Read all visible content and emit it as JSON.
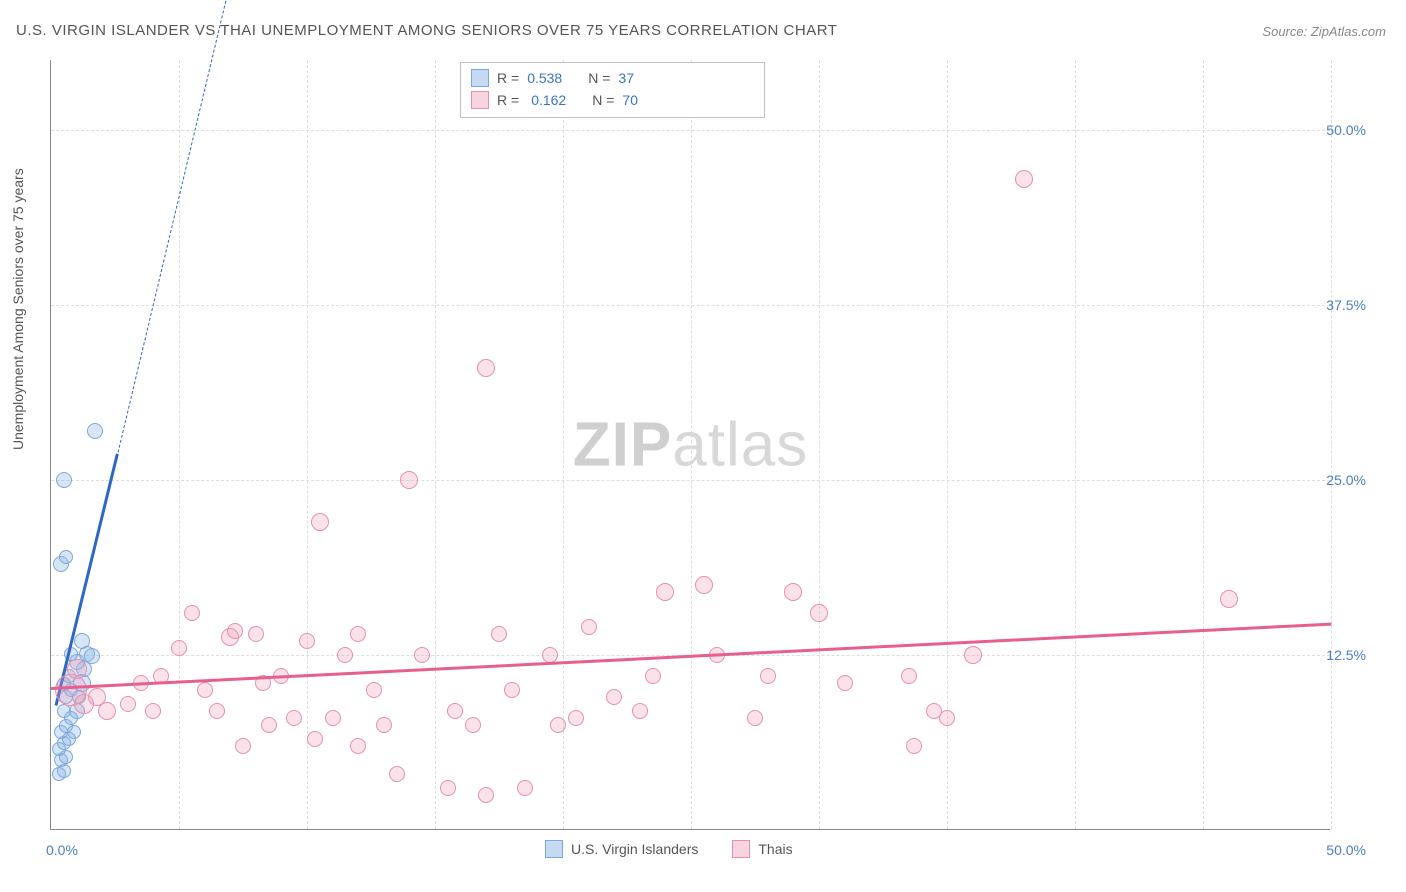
{
  "title": "U.S. VIRGIN ISLANDER VS THAI UNEMPLOYMENT AMONG SENIORS OVER 75 YEARS CORRELATION CHART",
  "source_label": "Source:",
  "source_value": "ZipAtlas.com",
  "watermark_a": "ZIP",
  "watermark_b": "atlas",
  "y_axis": {
    "label": "Unemployment Among Seniors over 75 years",
    "ticks": [
      {
        "v": 12.5,
        "label": "12.5%"
      },
      {
        "v": 25.0,
        "label": "25.0%"
      },
      {
        "v": 37.5,
        "label": "37.5%"
      },
      {
        "v": 50.0,
        "label": "50.0%"
      }
    ]
  },
  "x_axis": {
    "min_label": "0.0%",
    "max_label": "50.0%",
    "grid_at": [
      5,
      10,
      15,
      20,
      25,
      30,
      35,
      40,
      45,
      50
    ]
  },
  "chart": {
    "type": "scatter",
    "xlim": [
      0,
      50
    ],
    "ylim": [
      0,
      55
    ],
    "background_color": "#ffffff",
    "grid_color": "#dddddd",
    "axis_color": "#888888",
    "text_color": "#555555",
    "tick_value_color": "#4a7fc4"
  },
  "series": [
    {
      "key": "usvi",
      "name": "U.S. Virgin Islanders",
      "color_fill": "rgba(140,180,230,0.35)",
      "color_stroke": "#7aa9dd",
      "trend_color": "#2d68c4",
      "r_value": "0.538",
      "n_value": "37",
      "trend": {
        "x1": 0.2,
        "y1": 9.0,
        "x2": 2.6,
        "y2": 27.0,
        "dash_ext_x": 9.0,
        "dash_ext_y": 76.0
      },
      "points": [
        {
          "x": 0.3,
          "y": 4.0,
          "r": 7
        },
        {
          "x": 0.5,
          "y": 4.2,
          "r": 7
        },
        {
          "x": 0.4,
          "y": 5.0,
          "r": 7
        },
        {
          "x": 0.6,
          "y": 5.2,
          "r": 7
        },
        {
          "x": 0.3,
          "y": 5.8,
          "r": 7
        },
        {
          "x": 0.5,
          "y": 6.2,
          "r": 7
        },
        {
          "x": 0.7,
          "y": 6.5,
          "r": 7
        },
        {
          "x": 0.4,
          "y": 7.0,
          "r": 7
        },
        {
          "x": 0.6,
          "y": 7.4,
          "r": 7
        },
        {
          "x": 0.9,
          "y": 7.0,
          "r": 7
        },
        {
          "x": 0.8,
          "y": 8.0,
          "r": 7
        },
        {
          "x": 0.5,
          "y": 8.5,
          "r": 7
        },
        {
          "x": 1.0,
          "y": 8.5,
          "r": 8
        },
        {
          "x": 0.6,
          "y": 9.5,
          "r": 7
        },
        {
          "x": 1.1,
          "y": 9.5,
          "r": 7
        },
        {
          "x": 0.8,
          "y": 10.0,
          "r": 7
        },
        {
          "x": 0.5,
          "y": 10.4,
          "r": 7
        },
        {
          "x": 1.2,
          "y": 10.5,
          "r": 9
        },
        {
          "x": 0.7,
          "y": 11.0,
          "r": 7
        },
        {
          "x": 1.3,
          "y": 11.5,
          "r": 8
        },
        {
          "x": 1.0,
          "y": 12.0,
          "r": 8
        },
        {
          "x": 1.4,
          "y": 12.6,
          "r": 8
        },
        {
          "x": 0.8,
          "y": 12.6,
          "r": 7
        },
        {
          "x": 1.6,
          "y": 12.4,
          "r": 8
        },
        {
          "x": 1.2,
          "y": 13.5,
          "r": 8
        },
        {
          "x": 0.4,
          "y": 19.0,
          "r": 8
        },
        {
          "x": 0.6,
          "y": 19.5,
          "r": 7
        },
        {
          "x": 0.5,
          "y": 25.0,
          "r": 8
        },
        {
          "x": 1.7,
          "y": 28.5,
          "r": 8
        }
      ]
    },
    {
      "key": "thai",
      "name": "Thais",
      "color_fill": "rgba(240,160,185,0.30)",
      "color_stroke": "#e88fae",
      "trend_color": "#e65f8e",
      "r_value": "0.162",
      "n_value": "70",
      "trend": {
        "x1": 0.0,
        "y1": 10.2,
        "x2": 50.0,
        "y2": 14.8
      },
      "points": [
        {
          "x": 0.8,
          "y": 10.0,
          "r": 16
        },
        {
          "x": 1.3,
          "y": 9.0,
          "r": 10
        },
        {
          "x": 1.8,
          "y": 9.5,
          "r": 9
        },
        {
          "x": 2.2,
          "y": 8.5,
          "r": 9
        },
        {
          "x": 1.0,
          "y": 11.5,
          "r": 10
        },
        {
          "x": 3.0,
          "y": 9.0,
          "r": 8
        },
        {
          "x": 3.5,
          "y": 10.5,
          "r": 8
        },
        {
          "x": 4.3,
          "y": 11.0,
          "r": 8
        },
        {
          "x": 4.0,
          "y": 8.5,
          "r": 8
        },
        {
          "x": 5.0,
          "y": 13.0,
          "r": 8
        },
        {
          "x": 5.5,
          "y": 15.5,
          "r": 8
        },
        {
          "x": 6.0,
          "y": 10.0,
          "r": 8
        },
        {
          "x": 6.5,
          "y": 8.5,
          "r": 8
        },
        {
          "x": 7.0,
          "y": 13.8,
          "r": 9
        },
        {
          "x": 7.2,
          "y": 14.2,
          "r": 8
        },
        {
          "x": 7.5,
          "y": 6.0,
          "r": 8
        },
        {
          "x": 8.0,
          "y": 14.0,
          "r": 8
        },
        {
          "x": 8.3,
          "y": 10.5,
          "r": 8
        },
        {
          "x": 8.5,
          "y": 7.5,
          "r": 8
        },
        {
          "x": 9.0,
          "y": 11.0,
          "r": 8
        },
        {
          "x": 9.5,
          "y": 8.0,
          "r": 8
        },
        {
          "x": 10.0,
          "y": 13.5,
          "r": 8
        },
        {
          "x": 10.3,
          "y": 6.5,
          "r": 8
        },
        {
          "x": 10.5,
          "y": 22.0,
          "r": 9
        },
        {
          "x": 11.0,
          "y": 8.0,
          "r": 8
        },
        {
          "x": 11.5,
          "y": 12.5,
          "r": 8
        },
        {
          "x": 12.0,
          "y": 6.0,
          "r": 8
        },
        {
          "x": 12.0,
          "y": 14.0,
          "r": 8
        },
        {
          "x": 12.6,
          "y": 10.0,
          "r": 8
        },
        {
          "x": 13.0,
          "y": 7.5,
          "r": 8
        },
        {
          "x": 13.5,
          "y": 4.0,
          "r": 8
        },
        {
          "x": 14.0,
          "y": 25.0,
          "r": 9
        },
        {
          "x": 14.5,
          "y": 12.5,
          "r": 8
        },
        {
          "x": 15.5,
          "y": 3.0,
          "r": 8
        },
        {
          "x": 15.8,
          "y": 8.5,
          "r": 8
        },
        {
          "x": 16.5,
          "y": 7.5,
          "r": 8
        },
        {
          "x": 17.0,
          "y": 2.5,
          "r": 8
        },
        {
          "x": 17.5,
          "y": 14.0,
          "r": 8
        },
        {
          "x": 17.0,
          "y": 33.0,
          "r": 9
        },
        {
          "x": 18.0,
          "y": 10.0,
          "r": 8
        },
        {
          "x": 18.5,
          "y": 3.0,
          "r": 8
        },
        {
          "x": 19.5,
          "y": 12.5,
          "r": 8
        },
        {
          "x": 19.8,
          "y": 7.5,
          "r": 8
        },
        {
          "x": 20.5,
          "y": 8.0,
          "r": 8
        },
        {
          "x": 21.0,
          "y": 14.5,
          "r": 8
        },
        {
          "x": 22.0,
          "y": 9.5,
          "r": 8
        },
        {
          "x": 23.0,
          "y": 8.5,
          "r": 8
        },
        {
          "x": 23.5,
          "y": 11.0,
          "r": 8
        },
        {
          "x": 24.0,
          "y": 17.0,
          "r": 9
        },
        {
          "x": 25.5,
          "y": 17.5,
          "r": 9
        },
        {
          "x": 26.0,
          "y": 12.5,
          "r": 8
        },
        {
          "x": 27.5,
          "y": 8.0,
          "r": 8
        },
        {
          "x": 28.0,
          "y": 11.0,
          "r": 8
        },
        {
          "x": 29.0,
          "y": 17.0,
          "r": 9
        },
        {
          "x": 30.0,
          "y": 15.5,
          "r": 9
        },
        {
          "x": 31.0,
          "y": 10.5,
          "r": 8
        },
        {
          "x": 33.5,
          "y": 11.0,
          "r": 8
        },
        {
          "x": 33.7,
          "y": 6.0,
          "r": 8
        },
        {
          "x": 34.5,
          "y": 8.5,
          "r": 8
        },
        {
          "x": 35.0,
          "y": 8.0,
          "r": 8
        },
        {
          "x": 36.0,
          "y": 12.5,
          "r": 9
        },
        {
          "x": 38.0,
          "y": 46.5,
          "r": 9
        },
        {
          "x": 46.0,
          "y": 16.5,
          "r": 9
        }
      ]
    }
  ],
  "legend_top": {
    "r_label": "R =",
    "n_label": "N ="
  }
}
